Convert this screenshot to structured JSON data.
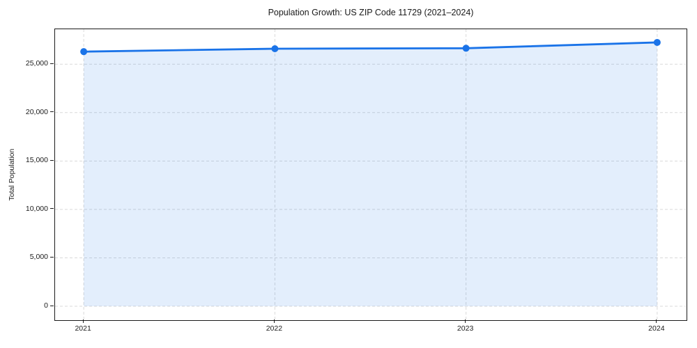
{
  "title": "Population Growth: US ZIP Code 11729 (2021–2024)",
  "ylabel": "Total Population",
  "chart_data": {
    "type": "area",
    "title": "Population Growth: US ZIP Code 11729 (2021–2024)",
    "xlabel": "",
    "ylabel": "Total Population",
    "x": [
      2021,
      2022,
      2023,
      2024
    ],
    "series": [
      {
        "name": "Total Population",
        "values": [
          26300,
          26600,
          26650,
          27250
        ]
      }
    ],
    "xticks": [
      {
        "value": 2021,
        "label": "2021"
      },
      {
        "value": 2022,
        "label": "2022"
      },
      {
        "value": 2023,
        "label": "2023"
      },
      {
        "value": 2024,
        "label": "2024"
      }
    ],
    "yticks": [
      {
        "value": 0,
        "label": "0"
      },
      {
        "value": 5000,
        "label": "5,000"
      },
      {
        "value": 10000,
        "label": "10,000"
      },
      {
        "value": 15000,
        "label": "15,000"
      },
      {
        "value": 20000,
        "label": "20,000"
      },
      {
        "value": 25000,
        "label": "25,000"
      }
    ],
    "xlim": [
      2020.85,
      2024.15
    ],
    "ylim": [
      -1362,
      28612
    ],
    "grid": true,
    "fill_to": 0,
    "line_color": "#1a73e8",
    "fill_color": "rgba(26,115,232,0.12)",
    "grid_color": "#d9d9d9",
    "spine_color": "#1a1a1a",
    "marker": "circle"
  }
}
